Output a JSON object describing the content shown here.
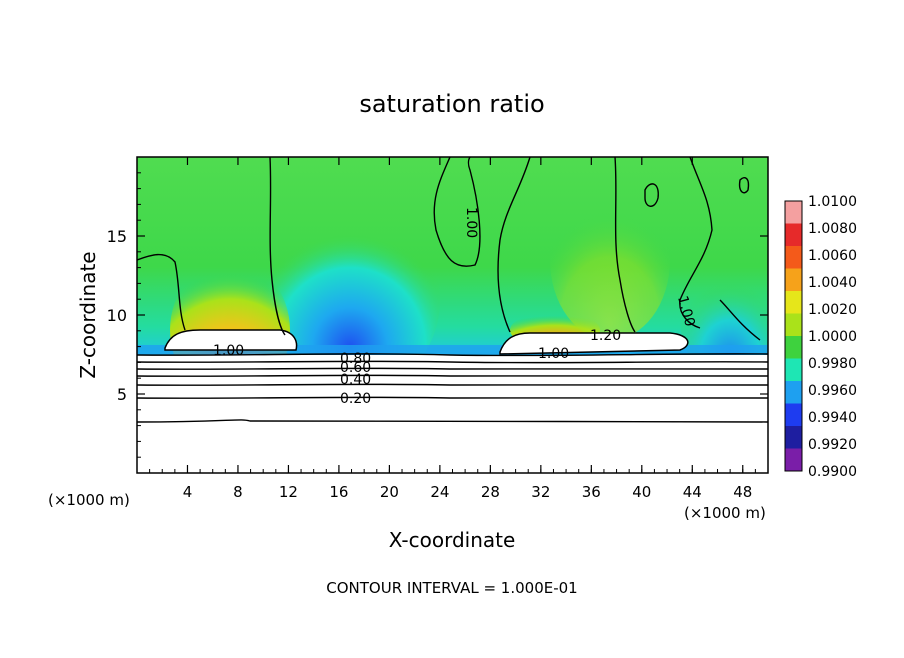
{
  "chart_data": {
    "type": "heatmap",
    "title": "saturation ratio",
    "xlabel": "X-coordinate",
    "ylabel": "Z-coordinate",
    "x_unit": "(×1000 m)",
    "y_unit": "(×1000 m)",
    "xlim": [
      0,
      50
    ],
    "ylim": [
      0,
      20
    ],
    "x_ticks": [
      "4",
      "8",
      "12",
      "16",
      "20",
      "24",
      "28",
      "32",
      "36",
      "40",
      "44",
      "48"
    ],
    "y_ticks": [
      "5",
      "10",
      "15"
    ],
    "colorbar": {
      "ticks": [
        "1.0100",
        "1.0080",
        "1.0060",
        "1.0040",
        "1.0020",
        "1.0000",
        "0.9980",
        "0.9960",
        "0.9940",
        "0.9920",
        "0.9900"
      ],
      "colors": [
        "#f4a0a0",
        "#e62a2a",
        "#f45a1a",
        "#f6a21a",
        "#e6e61a",
        "#aae21a",
        "#3ed23e",
        "#1ee6b4",
        "#1ea0f0",
        "#1e3cf0",
        "#1e1ea0",
        "#7a1ea8"
      ]
    },
    "contour_labels": [
      "1.00",
      "1.00",
      "1.00",
      "1.00",
      "1.00",
      "1.20",
      "0.80",
      "0.60",
      "0.40",
      "0.20"
    ],
    "footer": "CONTOUR INTERVAL = 1.000E-01"
  }
}
